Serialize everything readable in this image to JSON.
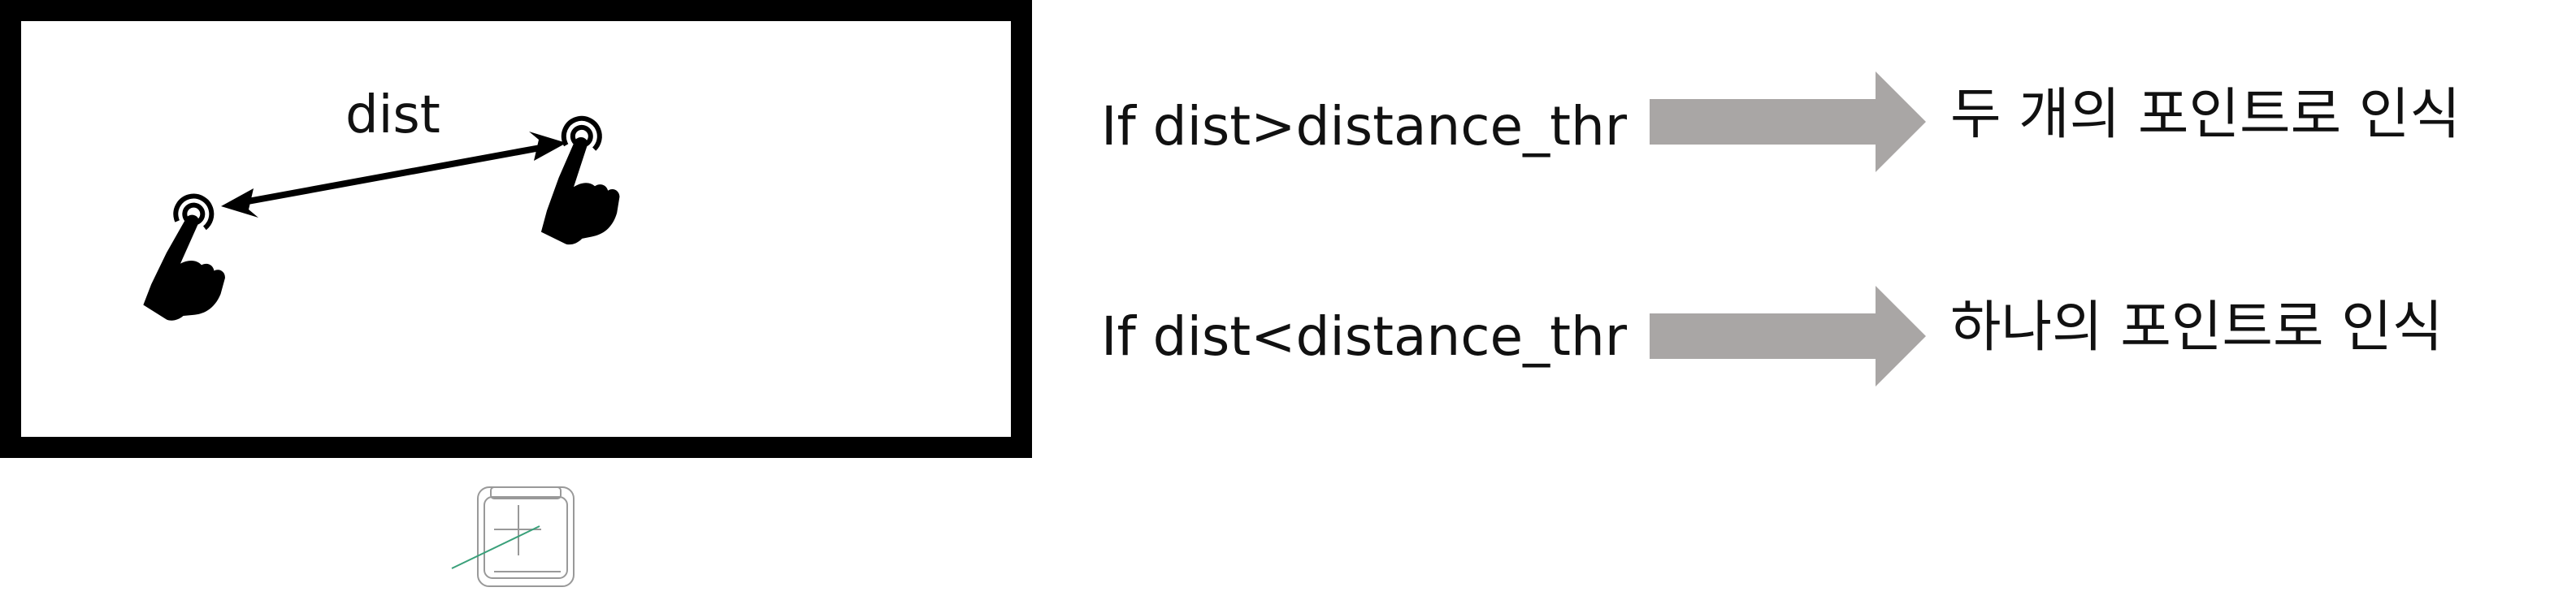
{
  "screen": {
    "dist_label": "dist"
  },
  "rules": [
    {
      "condition": "If dist>distance_thr",
      "result": "두 개의 포인트로 인식",
      "arrow_color": "#a9a6a5"
    },
    {
      "condition": "If dist<distance_thr",
      "result": "하나의 포인트로 인식",
      "arrow_color": "#a9a6a5"
    }
  ],
  "icons": {
    "left_hand": "touch-hand-icon",
    "right_hand": "touch-hand-icon",
    "device": "device-icon"
  },
  "colors": {
    "frame": "#000000",
    "arrow": "#a9a6a5",
    "device_line": "#999999",
    "device_accent": "#3aa07a"
  }
}
